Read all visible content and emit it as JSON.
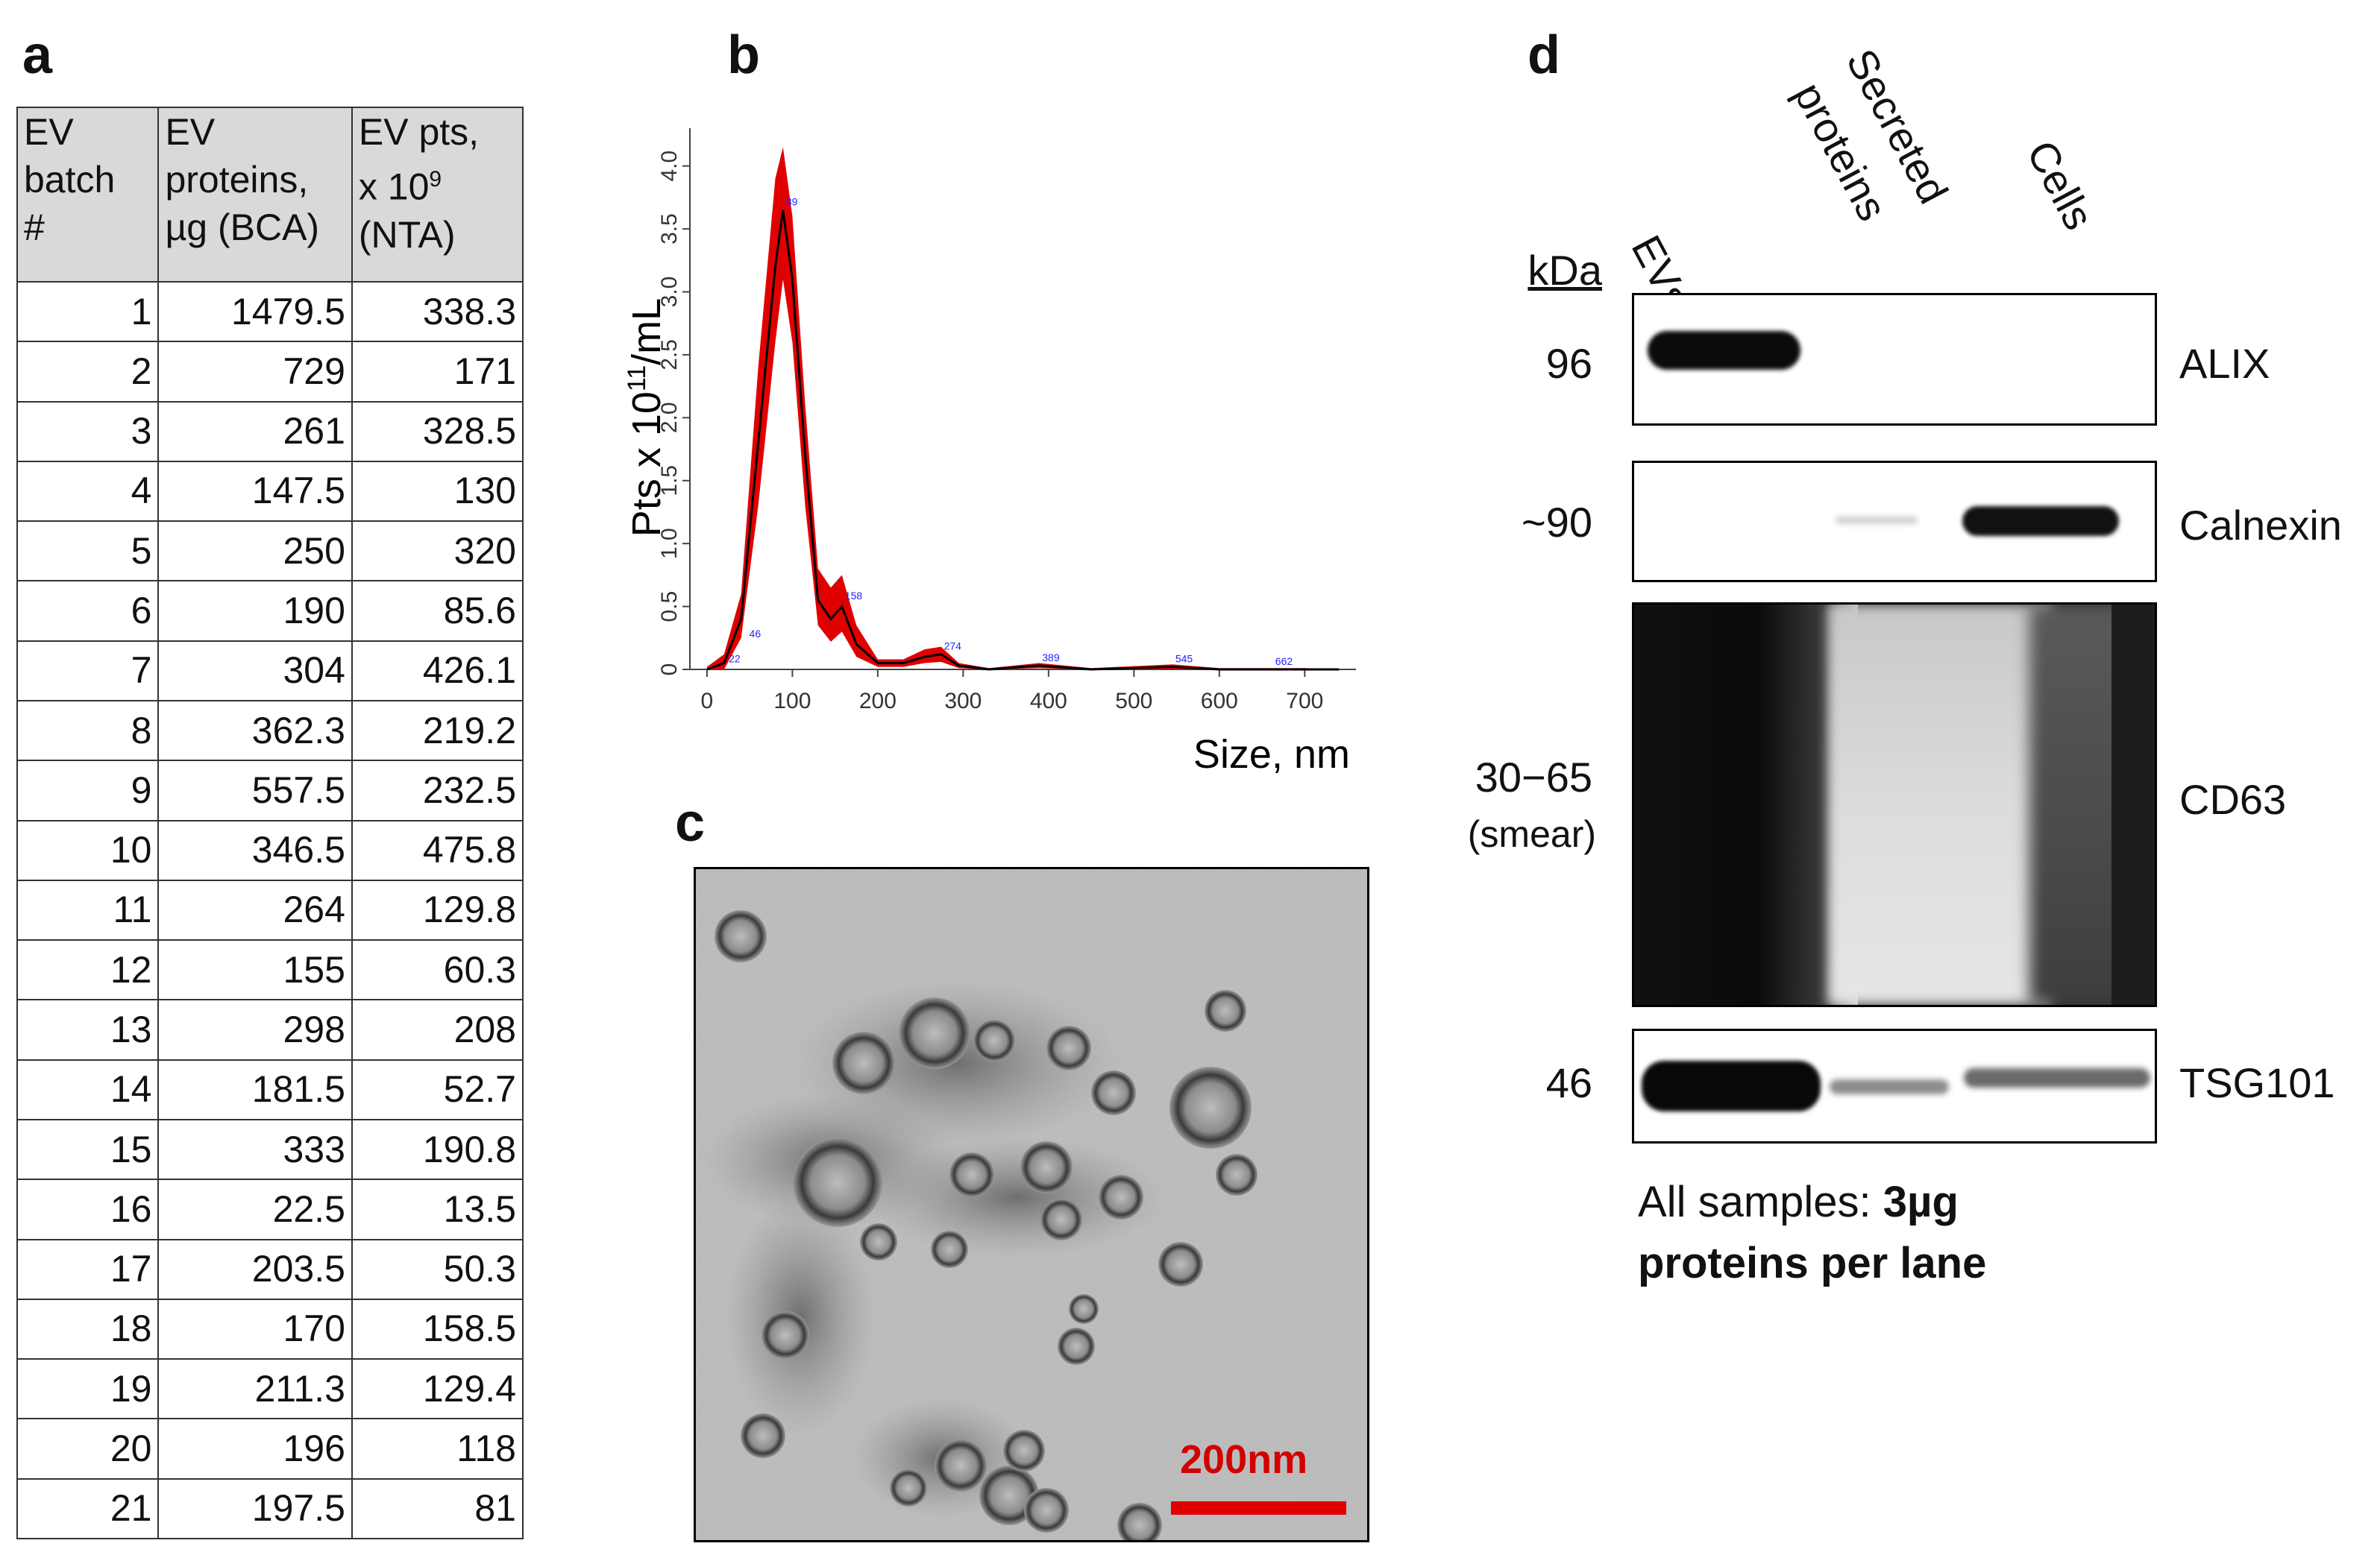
{
  "panels": {
    "a": "a",
    "b": "b",
    "c": "c",
    "d": "d"
  },
  "table": {
    "headers": [
      [
        "EV",
        "batch",
        "#"
      ],
      [
        "EV",
        "proteins,",
        "µg (BCA)"
      ],
      [
        "EV pts,",
        "x 10",
        "9",
        "(NTA)"
      ]
    ],
    "rows": [
      [
        "1",
        "1479.5",
        "338.3"
      ],
      [
        "2",
        "729",
        "171"
      ],
      [
        "3",
        "261",
        "328.5"
      ],
      [
        "4",
        "147.5",
        "130"
      ],
      [
        "5",
        "250",
        "320"
      ],
      [
        "6",
        "190",
        "85.6"
      ],
      [
        "7",
        "304",
        "426.1"
      ],
      [
        "8",
        "362.3",
        "219.2"
      ],
      [
        "9",
        "557.5",
        "232.5"
      ],
      [
        "10",
        "346.5",
        "475.8"
      ],
      [
        "11",
        "264",
        "129.8"
      ],
      [
        "12",
        "155",
        "60.3"
      ],
      [
        "13",
        "298",
        "208"
      ],
      [
        "14",
        "181.5",
        "52.7"
      ],
      [
        "15",
        "333",
        "190.8"
      ],
      [
        "16",
        "22.5",
        "13.5"
      ],
      [
        "17",
        "203.5",
        "50.3"
      ],
      [
        "18",
        "170",
        "158.5"
      ],
      [
        "19",
        "211.3",
        "129.4"
      ],
      [
        "20",
        "196",
        "118"
      ],
      [
        "21",
        "197.5",
        "81"
      ]
    ]
  },
  "chart_data": {
    "type": "line",
    "title": "",
    "xlabel": "Size, nm",
    "ylabel_parts": [
      "Pts x 10",
      "11",
      "/mL"
    ],
    "xlim": [
      -20,
      760
    ],
    "ylim": [
      0,
      4.3
    ],
    "xticks": [
      0,
      100,
      200,
      300,
      400,
      500,
      600,
      700
    ],
    "yticks": [
      0,
      0.5,
      1.0,
      1.5,
      2.0,
      2.5,
      3.0,
      3.5,
      4.0
    ],
    "ytick_labels": [
      "0",
      "0.5",
      "1.0",
      "1.5",
      "2.0",
      "2.5",
      "3.0",
      "3.5",
      "4.0"
    ],
    "series": [
      {
        "color": "#000000",
        "x": [
          0,
          20,
          40,
          60,
          80,
          89,
          100,
          115,
          130,
          145,
          158,
          175,
          200,
          230,
          255,
          274,
          295,
          330,
          389,
          450,
          545,
          600,
          662,
          700,
          740
        ],
        "y": [
          0,
          0.05,
          0.4,
          1.8,
          3.2,
          3.65,
          3.1,
          1.7,
          0.55,
          0.4,
          0.5,
          0.2,
          0.05,
          0.05,
          0.1,
          0.12,
          0.03,
          0.0,
          0.03,
          0.0,
          0.02,
          0.0,
          0.0,
          0.0,
          0.0
        ]
      }
    ],
    "error_band": {
      "color": "#e00000",
      "x": [
        0,
        20,
        40,
        60,
        80,
        89,
        100,
        115,
        130,
        145,
        158,
        175,
        200,
        230,
        255,
        274,
        295,
        330,
        389,
        450,
        545,
        600,
        662,
        700,
        740
      ],
      "upper": [
        0.02,
        0.12,
        0.6,
        2.4,
        3.9,
        4.15,
        3.6,
        2.1,
        0.8,
        0.65,
        0.75,
        0.35,
        0.08,
        0.08,
        0.16,
        0.18,
        0.05,
        0.01,
        0.05,
        0.01,
        0.04,
        0.01,
        0.01,
        0.01,
        0.0
      ],
      "lower": [
        0,
        0.0,
        0.25,
        1.3,
        2.6,
        3.1,
        2.6,
        1.3,
        0.35,
        0.22,
        0.3,
        0.1,
        0.02,
        0.02,
        0.05,
        0.06,
        0.01,
        0.0,
        0.01,
        0.0,
        0.0,
        0.0,
        0.0,
        0.0,
        0.0
      ]
    },
    "peak_labels": [
      {
        "x": 22,
        "y": 0.02,
        "text": "22"
      },
      {
        "x": 46,
        "y": 0.22,
        "text": "46"
      },
      {
        "x": 89,
        "y": 3.65,
        "text": "89"
      },
      {
        "x": 158,
        "y": 0.52,
        "text": "158"
      },
      {
        "x": 274,
        "y": 0.12,
        "text": "274"
      },
      {
        "x": 389,
        "y": 0.03,
        "text": "389"
      },
      {
        "x": 545,
        "y": 0.02,
        "text": "545"
      },
      {
        "x": 662,
        "y": 0.0,
        "text": "662"
      }
    ]
  },
  "em": {
    "scale_label": "200nm"
  },
  "blot": {
    "lanes": [
      "EVs",
      "Secreted",
      "proteins",
      "Cells"
    ],
    "kda_header": "kDa",
    "rows": [
      {
        "kda": "96",
        "name": "ALIX"
      },
      {
        "kda": "~90",
        "name": "Calnexin"
      },
      {
        "kda": "30−65",
        "kda_sub": "(smear)",
        "name": "CD63"
      },
      {
        "kda": "46",
        "name": "TSG101"
      }
    ],
    "note_plain": "All samples: ",
    "note_bold_1": "3µg",
    "note_bold_2": "proteins per lane"
  }
}
